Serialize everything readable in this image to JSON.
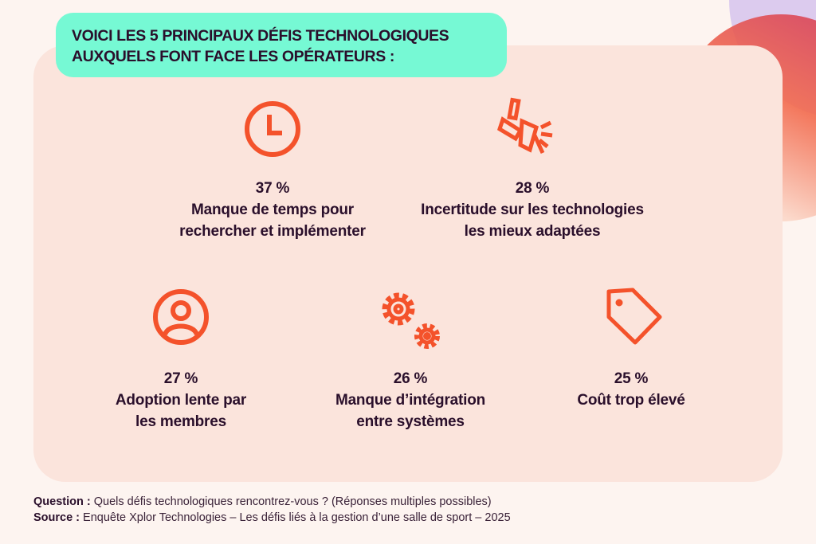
{
  "title": "VOICI LES 5 PRINCIPAUX DÉFIS TECHNOLOGIQUES AUXQUELS FONT FACE LES OPÉRATEURS :",
  "accent_color": "#f4522b",
  "items": [
    {
      "icon": "clock-icon",
      "percent": "37 %",
      "label_line1": "Manque de temps pour",
      "label_line2": "rechercher et implémenter"
    },
    {
      "icon": "megaphone-icon",
      "percent": "28 %",
      "label_line1": "Incertitude sur les technologies",
      "label_line2": "les mieux adaptées"
    },
    {
      "icon": "user-circle-icon",
      "percent": "27 %",
      "label_line1": "Adoption lente par",
      "label_line2": "les membres"
    },
    {
      "icon": "gears-icon",
      "percent": "26 %",
      "label_line1": "Manque d’intégration",
      "label_line2": "entre systèmes"
    },
    {
      "icon": "price-tag-icon",
      "percent": "25 %",
      "label_line1": "Coût trop élevé",
      "label_line2": ""
    }
  ],
  "footer": {
    "question_label": "Question :",
    "question_text": " Quels défis technologiques rencontrez-vous ? (Réponses multiples possibles)",
    "source_label": "Source :",
    "source_text": " Enquête Xplor Technologies – Les défis liés à la gestion d’une salle de sport – 2025"
  }
}
